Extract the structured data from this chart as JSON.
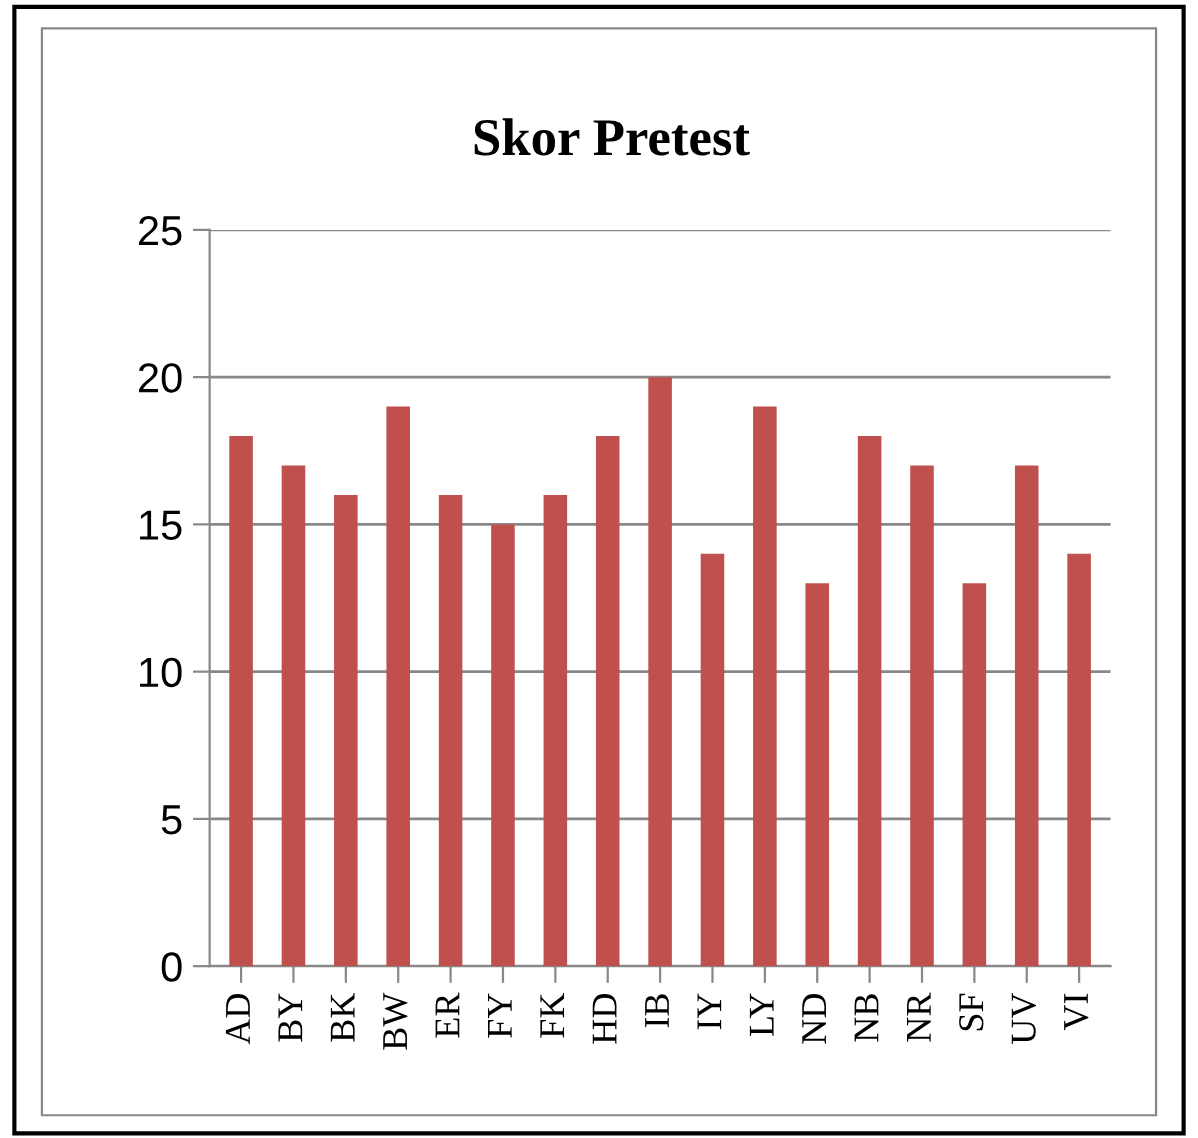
{
  "chart_data": {
    "type": "bar",
    "title": "Skor Pretest",
    "categories": [
      "AD",
      "BY",
      "BK",
      "BW",
      "ER",
      "FY",
      "FK",
      "HD",
      "IB",
      "IY",
      "LY",
      "ND",
      "NB",
      "NR",
      "SF",
      "UV",
      "VI"
    ],
    "values": [
      18,
      17,
      16,
      19,
      16,
      15,
      16,
      18,
      20,
      14,
      19,
      13,
      18,
      17,
      13,
      17,
      14
    ],
    "color": "#c0504d",
    "ylim": [
      0,
      25
    ],
    "yticks": [
      0,
      5,
      10,
      15,
      20,
      25
    ],
    "grid": "y",
    "legend": false
  }
}
